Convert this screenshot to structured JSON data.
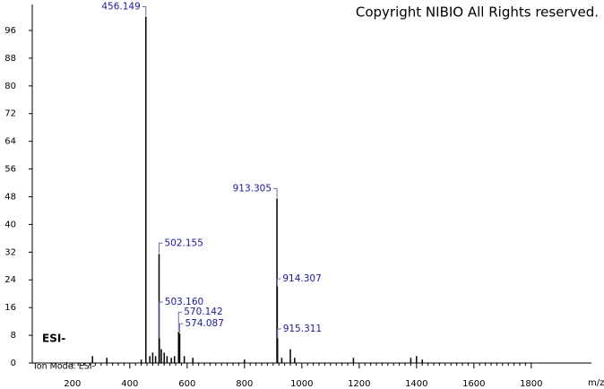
{
  "chart_data": {
    "type": "stem",
    "title": "Copyright NIBIO All Rights reserved.",
    "mode_label": "ESI-",
    "ion_mode": "Ion Mode: ESI-",
    "x_label": "m/z",
    "color": "#000000",
    "label_color": "#1a1a9c",
    "x": [
      456.149,
      502.155,
      503.16,
      570.142,
      574.087,
      913.305,
      914.307,
      915.311
    ],
    "labels": [
      "456.149",
      "502.155",
      "503.160",
      "570.142",
      "574.087",
      "913.305",
      "914.307",
      "915.311"
    ],
    "values": [
      100,
      31.5,
      7,
      9,
      8.5,
      47.5,
      22,
      7
    ],
    "minor_x": [
      270,
      320,
      440,
      470,
      480,
      490,
      510,
      520,
      530,
      545,
      556,
      590,
      620,
      800,
      930,
      960,
      975,
      1180,
      1380,
      1400,
      1420
    ],
    "minor_values": [
      2,
      1.5,
      1,
      2,
      3,
      2,
      4,
      3,
      2,
      1.5,
      2,
      2,
      1.5,
      1,
      1.5,
      4,
      1.5,
      1.5,
      1.5,
      2,
      1
    ],
    "xlim": [
      60,
      2010
    ],
    "ylim": [
      0,
      103.5
    ],
    "xticks": [
      200,
      400,
      600,
      800,
      1000,
      1200,
      1400,
      1600,
      1800
    ],
    "yticks": [
      0,
      8,
      16,
      24,
      32,
      40,
      48,
      56,
      64,
      72,
      80,
      88,
      96
    ]
  }
}
